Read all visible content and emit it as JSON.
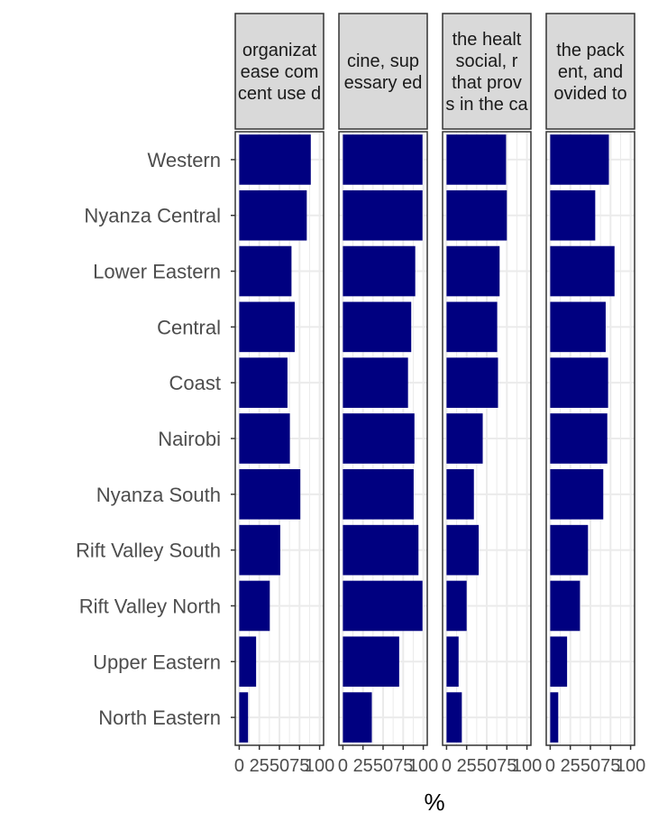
{
  "chart_data": {
    "type": "bar",
    "orientation": "horizontal",
    "xlabel": "%",
    "xlim": [
      0,
      100
    ],
    "xticks": [
      0,
      25,
      50,
      75,
      100
    ],
    "xtick_labels": [
      "0",
      "25",
      "50",
      "75",
      "100"
    ],
    "grid": true,
    "bar_color": "#000080",
    "categories": [
      "Western",
      "Nyanza Central",
      "Lower Eastern",
      "Central",
      "Coast",
      "Nairobi",
      "Nyanza South",
      "Rift Valley South",
      "Rift Valley North",
      "Upper Eastern",
      "North Eastern"
    ],
    "panels": [
      {
        "title_lines": [
          "organizat",
          "ease com",
          "cent use d"
        ],
        "values": [
          89,
          84,
          65,
          69,
          60,
          63,
          76,
          51,
          38,
          21,
          11
        ]
      },
      {
        "title_lines": [
          "cine, sup",
          "essary ed"
        ],
        "values": [
          99,
          99,
          90,
          85,
          81,
          89,
          88,
          94,
          99,
          70,
          36
        ]
      },
      {
        "title_lines": [
          "the healt",
          " social, r",
          " that prov",
          "s in the ca"
        ],
        "values": [
          74,
          75,
          66,
          63,
          64,
          45,
          34,
          40,
          25,
          15,
          19
        ]
      },
      {
        "title_lines": [
          " the pack",
          "ent, and",
          "ovided to"
        ],
        "values": [
          73,
          56,
          80,
          69,
          72,
          71,
          66,
          47,
          37,
          21,
          10
        ]
      }
    ]
  }
}
